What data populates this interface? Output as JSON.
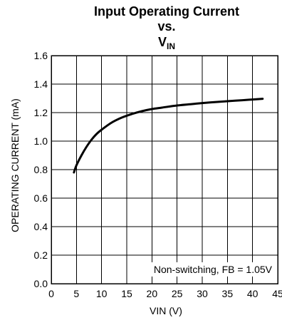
{
  "chart_data": {
    "type": "line",
    "title": {
      "line1": "Input Operating Current",
      "line2": "vs.",
      "line3_main": "V",
      "line3_sub": "IN"
    },
    "xlabel": "VIN (V)",
    "ylabel": "OPERATING CURRENT (mA)",
    "xlim": [
      0,
      45
    ],
    "ylim": [
      0.0,
      1.6
    ],
    "x_ticks": [
      0,
      5,
      10,
      15,
      20,
      25,
      30,
      35,
      40,
      45
    ],
    "x_tick_labels": [
      "0",
      "5",
      "10",
      "15",
      "20",
      "25",
      "30",
      "35",
      "40",
      "45"
    ],
    "y_ticks": [
      0.0,
      0.2,
      0.4,
      0.6,
      0.8,
      1.0,
      1.2,
      1.4,
      1.6
    ],
    "y_tick_labels": [
      "0.0",
      "0.2",
      "0.4",
      "0.6",
      "0.8",
      "1.0",
      "1.2",
      "1.4",
      "1.6"
    ],
    "grid": true,
    "annotation": "Non-switching, FB = 1.05V",
    "annotation_position": "bottom-right",
    "series": [
      {
        "x": [
          4.5,
          5,
          6,
          7,
          8,
          9,
          10,
          12,
          14,
          16,
          18,
          20,
          22,
          25,
          28,
          30,
          33,
          35,
          38,
          40,
          42
        ],
        "y": [
          0.78,
          0.83,
          0.9,
          0.96,
          1.01,
          1.05,
          1.08,
          1.13,
          1.165,
          1.19,
          1.21,
          1.225,
          1.235,
          1.25,
          1.26,
          1.267,
          1.275,
          1.28,
          1.287,
          1.292,
          1.297
        ]
      }
    ],
    "colors": {
      "line": "#000000",
      "grid": "#000000",
      "background": "#ffffff"
    }
  }
}
